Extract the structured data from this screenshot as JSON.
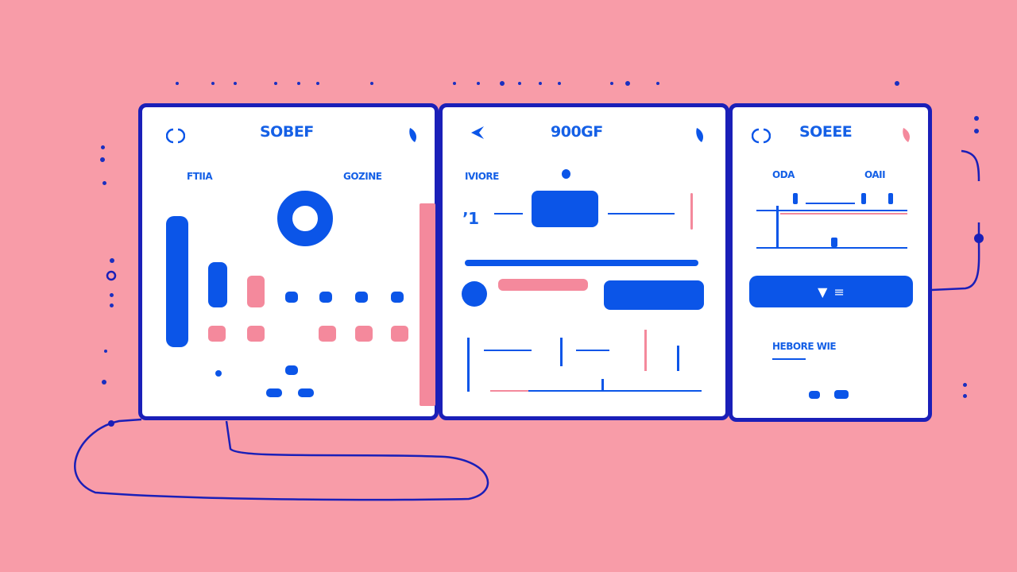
{
  "colors": {
    "background": "#f89ca8",
    "accent": "#0b55e8",
    "border": "#1a1fb8",
    "pink": "#f4899c"
  },
  "panels": [
    {
      "title": "SOBEF",
      "labels": [
        "FTIIA",
        "GOZINE"
      ],
      "icons": [
        "refresh-icon",
        "drop-icon"
      ]
    },
    {
      "title": "900GF",
      "labels": [
        "IVIORE"
      ],
      "icons": [
        "back-arrow-icon",
        "drop-icon"
      ]
    },
    {
      "title": "SOEEE",
      "labels": [
        "ODA",
        "OAII",
        "HEBORE WIE"
      ],
      "icons": [
        "refresh-icon",
        "drop-icon"
      ],
      "button_icons": [
        "chevron-down-icon",
        "menu-icon"
      ]
    }
  ]
}
